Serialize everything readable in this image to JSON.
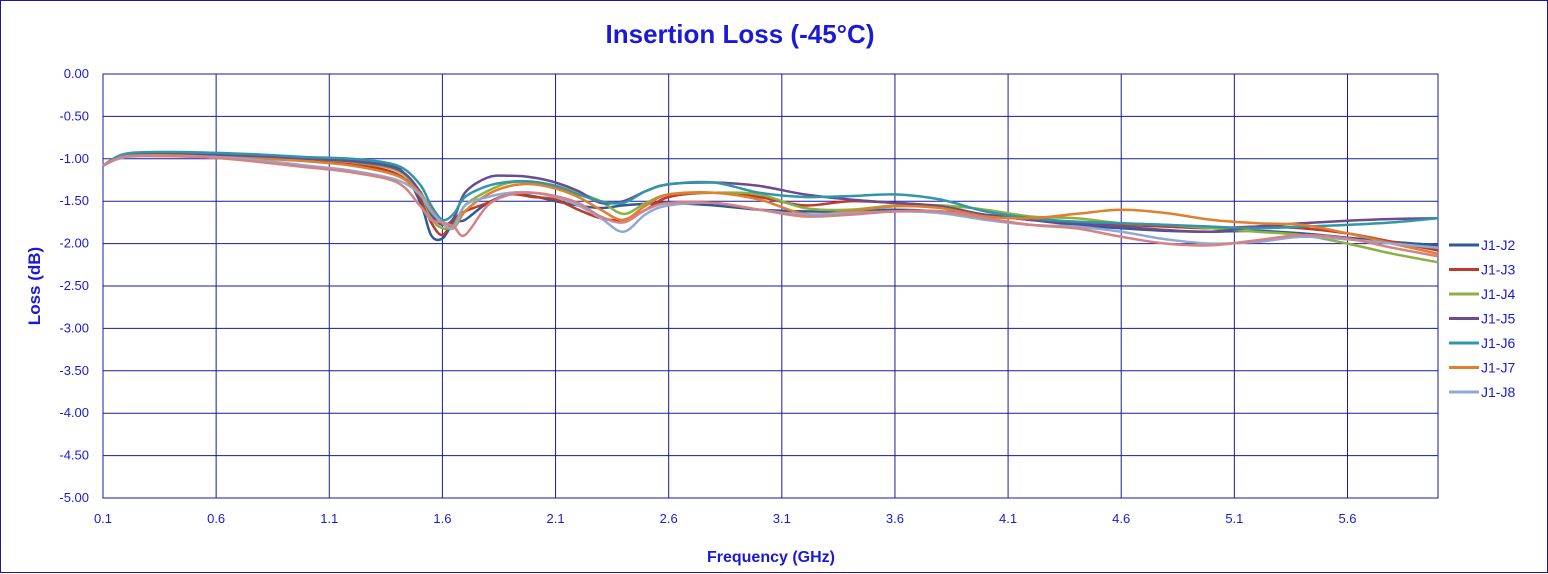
{
  "chart_data": {
    "type": "line",
    "title": "Insertion Loss (-45°C)",
    "xlabel": "Frequency (GHz)",
    "ylabel": "Loss (dB)",
    "xlim": [
      0.1,
      6.0
    ],
    "ylim": [
      -5.0,
      0.0
    ],
    "x_ticks": [
      "0.1",
      "0.6",
      "1.1",
      "1.6",
      "2.1",
      "2.6",
      "3.1",
      "3.6",
      "4.1",
      "4.6",
      "5.1",
      "5.6"
    ],
    "y_ticks": [
      "0.00",
      "-0.50",
      "-1.00",
      "-1.50",
      "-2.00",
      "-2.50",
      "-3.00",
      "-3.50",
      "-4.00",
      "-4.50",
      "-5.00"
    ],
    "grid": true,
    "legend_position": "right",
    "x": [
      0.1,
      0.2,
      0.4,
      0.6,
      0.8,
      1.0,
      1.2,
      1.4,
      1.5,
      1.55,
      1.6,
      1.65,
      1.7,
      1.8,
      1.9,
      2.0,
      2.1,
      2.2,
      2.3,
      2.4,
      2.5,
      2.6,
      2.8,
      3.0,
      3.2,
      3.4,
      3.6,
      3.8,
      4.0,
      4.2,
      4.4,
      4.6,
      4.8,
      5.0,
      5.2,
      5.4,
      5.6,
      5.8,
      6.0
    ],
    "series": [
      {
        "name": "J1-J2",
        "color": "#2e5a95",
        "values": [
          -1.08,
          -0.96,
          -0.95,
          -0.96,
          -0.98,
          -1.0,
          -1.02,
          -1.1,
          -1.5,
          -1.9,
          -1.94,
          -1.75,
          -1.72,
          -1.52,
          -1.42,
          -1.44,
          -1.5,
          -1.55,
          -1.58,
          -1.55,
          -1.53,
          -1.52,
          -1.55,
          -1.6,
          -1.62,
          -1.62,
          -1.6,
          -1.62,
          -1.66,
          -1.72,
          -1.78,
          -1.82,
          -1.85,
          -1.86,
          -1.85,
          -1.88,
          -1.93,
          -1.98,
          -2.02
        ]
      },
      {
        "name": "J1-J3",
        "color": "#c0392b",
        "values": [
          -1.08,
          -0.97,
          -0.96,
          -0.97,
          -0.99,
          -1.02,
          -1.06,
          -1.18,
          -1.45,
          -1.75,
          -1.9,
          -1.72,
          -1.62,
          -1.52,
          -1.42,
          -1.45,
          -1.48,
          -1.6,
          -1.7,
          -1.72,
          -1.6,
          -1.45,
          -1.4,
          -1.45,
          -1.55,
          -1.5,
          -1.52,
          -1.56,
          -1.66,
          -1.72,
          -1.76,
          -1.78,
          -1.8,
          -1.82,
          -1.8,
          -1.82,
          -1.88,
          -1.98,
          -2.08
        ]
      },
      {
        "name": "J1-J4",
        "color": "#8db046",
        "values": [
          -1.08,
          -0.96,
          -0.94,
          -0.95,
          -0.97,
          -1.0,
          -1.04,
          -1.14,
          -1.4,
          -1.7,
          -1.82,
          -1.78,
          -1.55,
          -1.38,
          -1.28,
          -1.28,
          -1.32,
          -1.4,
          -1.5,
          -1.65,
          -1.52,
          -1.42,
          -1.4,
          -1.42,
          -1.58,
          -1.6,
          -1.55,
          -1.55,
          -1.6,
          -1.68,
          -1.7,
          -1.76,
          -1.78,
          -1.82,
          -1.86,
          -1.9,
          -2.0,
          -2.12,
          -2.22
        ]
      },
      {
        "name": "J1-J5",
        "color": "#6a4c8f",
        "values": [
          -1.08,
          -0.96,
          -0.94,
          -0.95,
          -0.97,
          -1.0,
          -1.03,
          -1.12,
          -1.38,
          -1.65,
          -1.78,
          -1.7,
          -1.4,
          -1.22,
          -1.2,
          -1.22,
          -1.28,
          -1.38,
          -1.52,
          -1.5,
          -1.38,
          -1.3,
          -1.28,
          -1.32,
          -1.42,
          -1.48,
          -1.52,
          -1.56,
          -1.66,
          -1.72,
          -1.76,
          -1.8,
          -1.84,
          -1.86,
          -1.8,
          -1.76,
          -1.73,
          -1.71,
          -1.7
        ]
      },
      {
        "name": "J1-J6",
        "color": "#2f97a8",
        "values": [
          -1.08,
          -0.94,
          -0.92,
          -0.93,
          -0.95,
          -0.98,
          -1.0,
          -1.08,
          -1.3,
          -1.55,
          -1.72,
          -1.65,
          -1.45,
          -1.32,
          -1.27,
          -1.27,
          -1.32,
          -1.42,
          -1.5,
          -1.52,
          -1.38,
          -1.3,
          -1.28,
          -1.4,
          -1.45,
          -1.44,
          -1.42,
          -1.48,
          -1.62,
          -1.7,
          -1.74,
          -1.76,
          -1.78,
          -1.8,
          -1.82,
          -1.8,
          -1.78,
          -1.75,
          -1.7
        ]
      },
      {
        "name": "J1-J7",
        "color": "#e07f2e",
        "values": [
          -1.08,
          -0.97,
          -0.96,
          -0.98,
          -1.0,
          -1.03,
          -1.08,
          -1.2,
          -1.4,
          -1.6,
          -1.76,
          -1.82,
          -1.62,
          -1.42,
          -1.32,
          -1.3,
          -1.35,
          -1.45,
          -1.6,
          -1.72,
          -1.55,
          -1.42,
          -1.4,
          -1.48,
          -1.65,
          -1.62,
          -1.56,
          -1.58,
          -1.68,
          -1.7,
          -1.65,
          -1.6,
          -1.64,
          -1.72,
          -1.76,
          -1.78,
          -1.88,
          -2.0,
          -2.12
        ]
      },
      {
        "name": "J1-J8",
        "color": "#8fa9d6",
        "values": [
          -1.08,
          -0.98,
          -0.97,
          -0.98,
          -1.02,
          -1.08,
          -1.14,
          -1.25,
          -1.42,
          -1.62,
          -1.75,
          -1.82,
          -1.55,
          -1.45,
          -1.4,
          -1.4,
          -1.45,
          -1.55,
          -1.7,
          -1.86,
          -1.65,
          -1.55,
          -1.52,
          -1.6,
          -1.66,
          -1.64,
          -1.62,
          -1.64,
          -1.72,
          -1.78,
          -1.8,
          -1.86,
          -1.95,
          -2.0,
          -1.98,
          -1.92,
          -1.95,
          -2.0,
          -2.05
        ]
      },
      {
        "name": "",
        "color": "#d98080",
        "values": [
          -1.08,
          -0.97,
          -0.97,
          -0.99,
          -1.04,
          -1.1,
          -1.16,
          -1.28,
          -1.55,
          -1.72,
          -1.75,
          -1.8,
          -1.9,
          -1.55,
          -1.42,
          -1.4,
          -1.44,
          -1.52,
          -1.68,
          -1.75,
          -1.6,
          -1.52,
          -1.52,
          -1.6,
          -1.68,
          -1.66,
          -1.62,
          -1.62,
          -1.7,
          -1.78,
          -1.82,
          -1.92,
          -2.0,
          -2.02,
          -1.96,
          -1.9,
          -1.94,
          -2.05,
          -2.15
        ]
      }
    ]
  }
}
